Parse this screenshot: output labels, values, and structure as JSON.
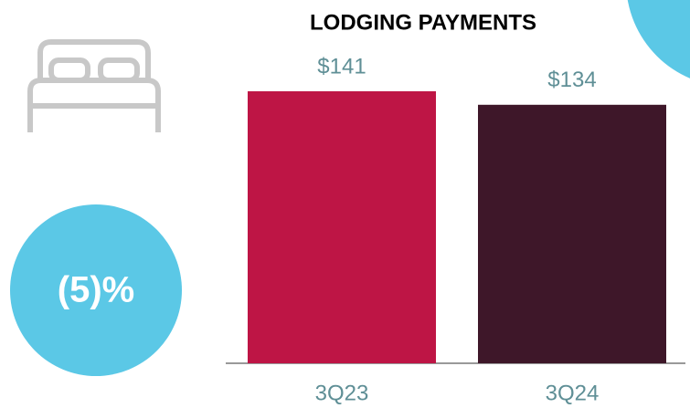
{
  "chart_data": {
    "type": "bar",
    "title": "LODGING PAYMENTS",
    "categories": [
      "3Q23",
      "3Q24"
    ],
    "values": [
      141,
      134
    ],
    "value_labels": [
      "$141",
      "$134"
    ],
    "colors": [
      "#be1545",
      "#3e1729"
    ],
    "annotation": "(5)%"
  }
}
